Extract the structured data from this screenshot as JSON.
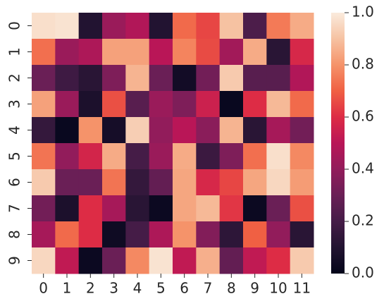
{
  "chart_data": {
    "type": "heatmap",
    "colormap": "rocket",
    "x_categories": [
      "0",
      "1",
      "2",
      "3",
      "4",
      "5",
      "6",
      "7",
      "8",
      "9",
      "10",
      "11"
    ],
    "y_categories": [
      "0",
      "1",
      "2",
      "3",
      "4",
      "5",
      "6",
      "7",
      "8",
      "9"
    ],
    "values": [
      [
        0.97,
        0.98,
        0.1,
        0.42,
        0.48,
        0.1,
        0.72,
        0.65,
        0.9,
        0.22,
        0.75,
        0.85
      ],
      [
        0.73,
        0.42,
        0.47,
        0.83,
        0.83,
        0.5,
        0.77,
        0.66,
        0.44,
        0.85,
        0.12,
        0.58
      ],
      [
        0.3,
        0.18,
        0.12,
        0.35,
        0.87,
        0.3,
        0.05,
        0.32,
        0.92,
        0.25,
        0.25,
        0.48
      ],
      [
        0.83,
        0.42,
        0.08,
        0.67,
        0.25,
        0.42,
        0.35,
        0.55,
        0.02,
        0.6,
        0.88,
        0.72
      ],
      [
        0.15,
        0.02,
        0.8,
        0.06,
        0.93,
        0.4,
        0.5,
        0.38,
        0.87,
        0.12,
        0.45,
        0.32
      ],
      [
        0.74,
        0.4,
        0.57,
        0.85,
        0.2,
        0.42,
        0.85,
        0.17,
        0.35,
        0.73,
        0.97,
        0.78
      ],
      [
        0.92,
        0.3,
        0.3,
        0.74,
        0.15,
        0.28,
        0.84,
        0.58,
        0.65,
        0.84,
        0.95,
        0.82
      ],
      [
        0.32,
        0.08,
        0.6,
        0.45,
        0.12,
        0.03,
        0.84,
        0.88,
        0.62,
        0.03,
        0.3,
        0.67
      ],
      [
        0.45,
        0.72,
        0.6,
        0.04,
        0.2,
        0.47,
        0.8,
        0.36,
        0.13,
        0.7,
        0.4,
        0.12
      ],
      [
        0.95,
        0.52,
        0.03,
        0.3,
        0.78,
        0.98,
        0.52,
        0.86,
        0.28,
        0.52,
        0.6,
        0.92
      ]
    ],
    "zlim": [
      0,
      1
    ],
    "colorbar_ticks": [
      {
        "value": 0,
        "label": "0.0"
      },
      {
        "value": 0.2,
        "label": "0.2"
      },
      {
        "value": 0.4,
        "label": "0.4"
      },
      {
        "value": 0.6,
        "label": "0.6"
      },
      {
        "value": 0.8,
        "label": "0.8"
      },
      {
        "value": 1,
        "label": "1.0"
      }
    ]
  }
}
